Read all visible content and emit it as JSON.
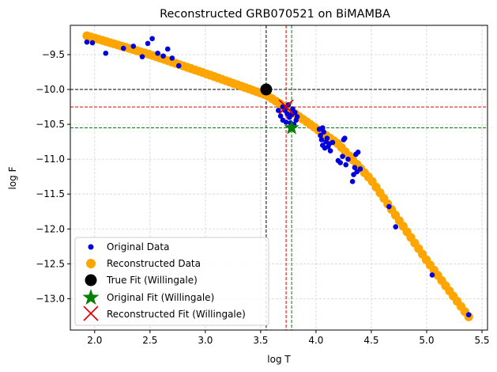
{
  "chart_data": {
    "type": "scatter",
    "title": "Reconstructed GRB070521 on BiMAMBA",
    "xlabel": "log T",
    "ylabel": "log F",
    "xlim": [
      1.78,
      5.55
    ],
    "ylim": [
      -13.45,
      -9.08
    ],
    "xticks": [
      2.0,
      2.5,
      3.0,
      3.5,
      4.0,
      4.5,
      5.0,
      5.5
    ],
    "xtick_labels": [
      "2.0",
      "2.5",
      "3.0",
      "3.5",
      "4.0",
      "4.5",
      "5.0",
      "5.5"
    ],
    "yticks": [
      -9.5,
      -10.0,
      -10.5,
      -11.0,
      -11.5,
      -12.0,
      -12.5,
      -13.0
    ],
    "ytick_labels": [
      "−9.5",
      "−10.0",
      "−10.5",
      "−11.0",
      "−11.5",
      "−12.0",
      "−12.5",
      "−13.0"
    ],
    "grid": true,
    "legend_position": "lower-left",
    "reconstructed_curve": {
      "name": "Reconstructed Data",
      "color": "#ffa500",
      "x_start": 1.93,
      "x_end": 5.38,
      "count": 100,
      "anchors_x": [
        1.93,
        2.5,
        3.0,
        3.55,
        3.75,
        4.2,
        4.5,
        5.0,
        5.38
      ],
      "anchors_y": [
        -9.23,
        -9.5,
        -9.77,
        -10.08,
        -10.28,
        -10.78,
        -11.3,
        -12.45,
        -13.26
      ]
    },
    "original_data": {
      "name": "Original Data",
      "color": "#0000dd",
      "points": [
        [
          1.93,
          -9.32
        ],
        [
          1.98,
          -9.33
        ],
        [
          2.1,
          -9.48
        ],
        [
          2.26,
          -9.41
        ],
        [
          2.35,
          -9.38
        ],
        [
          2.43,
          -9.53
        ],
        [
          2.48,
          -9.34
        ],
        [
          2.52,
          -9.27
        ],
        [
          2.57,
          -9.48
        ],
        [
          2.62,
          -9.52
        ],
        [
          2.66,
          -9.42
        ],
        [
          2.7,
          -9.55
        ],
        [
          2.76,
          -9.66
        ],
        [
          3.66,
          -10.3
        ],
        [
          3.68,
          -10.38
        ],
        [
          3.7,
          -10.25
        ],
        [
          3.7,
          -10.44
        ],
        [
          3.72,
          -10.3
        ],
        [
          3.73,
          -10.47
        ],
        [
          3.74,
          -10.35
        ],
        [
          3.75,
          -10.22
        ],
        [
          3.76,
          -10.4
        ],
        [
          3.77,
          -10.48
        ],
        [
          3.78,
          -10.36
        ],
        [
          3.79,
          -10.28
        ],
        [
          3.8,
          -10.5
        ],
        [
          3.81,
          -10.33
        ],
        [
          3.82,
          -10.44
        ],
        [
          3.83,
          -10.39
        ],
        [
          4.03,
          -10.57
        ],
        [
          4.04,
          -10.66
        ],
        [
          4.05,
          -10.72
        ],
        [
          4.06,
          -10.55
        ],
        [
          4.06,
          -10.8
        ],
        [
          4.07,
          -10.61
        ],
        [
          4.08,
          -10.84
        ],
        [
          4.09,
          -10.75
        ],
        [
          4.1,
          -10.7
        ],
        [
          4.11,
          -10.82
        ],
        [
          4.12,
          -10.78
        ],
        [
          4.13,
          -10.88
        ],
        [
          4.15,
          -10.76
        ],
        [
          4.2,
          -11.02
        ],
        [
          4.22,
          -11.05
        ],
        [
          4.24,
          -10.96
        ],
        [
          4.25,
          -10.72
        ],
        [
          4.26,
          -10.7
        ],
        [
          4.27,
          -11.08
        ],
        [
          4.29,
          -11.0
        ],
        [
          4.33,
          -11.32
        ],
        [
          4.34,
          -11.22
        ],
        [
          4.35,
          -11.12
        ],
        [
          4.36,
          -10.93
        ],
        [
          4.37,
          -11.18
        ],
        [
          4.38,
          -10.9
        ],
        [
          4.4,
          -11.14
        ],
        [
          4.66,
          -11.68
        ],
        [
          4.72,
          -11.97
        ],
        [
          5.05,
          -12.66
        ],
        [
          5.38,
          -13.23
        ]
      ]
    },
    "true_fit": {
      "name": "True Fit (Willingale)",
      "color": "#000000",
      "x": 3.55,
      "y": -10.0
    },
    "original_fit": {
      "name": "Original Fit (Willingale)",
      "color": "#008000",
      "x": 3.78,
      "y": -10.55
    },
    "reconstructed_fit": {
      "name": "Reconstructed Fit (Willingale)",
      "color": "#dd0000",
      "x": 3.73,
      "y": -10.25
    },
    "legend": [
      {
        "key": "original",
        "label": "Original Data"
      },
      {
        "key": "reconstructed",
        "label": "Reconstructed Data"
      },
      {
        "key": "true_fit",
        "label": "True Fit (Willingale)"
      },
      {
        "key": "original_fit",
        "label": "Original Fit (Willingale)"
      },
      {
        "key": "reconstructed_fit",
        "label": "Reconstructed Fit (Willingale)"
      }
    ]
  }
}
